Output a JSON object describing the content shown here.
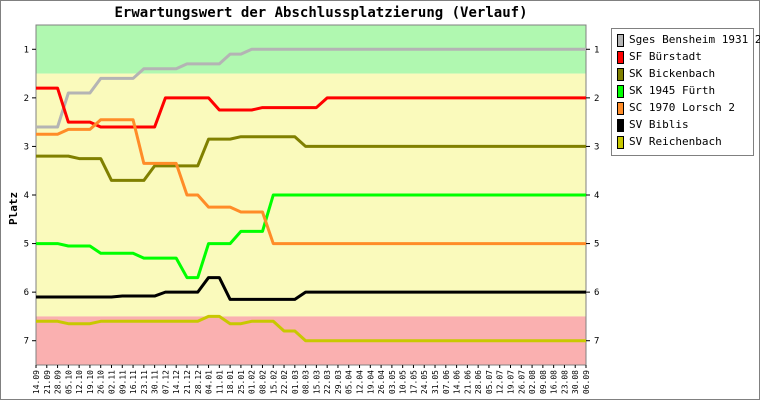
{
  "chart_data": {
    "type": "line",
    "title": "Erwartungswert der Abschlussplatzierung (Verlauf)",
    "ylabel": "Platz",
    "xlabel": "",
    "ylim": [
      0.5,
      7.5
    ],
    "y_ticks": [
      1,
      2,
      3,
      4,
      5,
      6,
      7
    ],
    "grid": false,
    "legend_position": "right",
    "bands": [
      {
        "from": 0.5,
        "to": 1.5,
        "color": "#b0f8b0"
      },
      {
        "from": 1.5,
        "to": 6.5,
        "color": "#fafabc"
      },
      {
        "from": 6.5,
        "to": 7.5,
        "color": "#fab0b0"
      }
    ],
    "categories": [
      "14.09",
      "21.09",
      "28.09",
      "05.10",
      "12.10",
      "19.10",
      "26.10",
      "02.11",
      "09.11",
      "16.11",
      "23.11",
      "30.11",
      "07.12",
      "14.12",
      "21.12",
      "28.12",
      "04.01",
      "11.01",
      "18.01",
      "25.01",
      "01.02",
      "08.02",
      "15.02",
      "22.02",
      "01.03",
      "08.03",
      "15.03",
      "22.03",
      "29.03",
      "05.04",
      "12.04",
      "19.04",
      "26.04",
      "03.05",
      "10.05",
      "17.05",
      "24.05",
      "31.05",
      "07.06",
      "14.06",
      "21.06",
      "28.06",
      "05.07",
      "12.07",
      "19.07",
      "26.07",
      "02.08",
      "09.08",
      "16.08",
      "23.08",
      "30.08",
      "06.09"
    ],
    "series": [
      {
        "name": "Sges Bensheim 1931 2",
        "color": "#b4b4b4",
        "values": [
          2.6,
          2.6,
          2.6,
          1.9,
          1.9,
          1.9,
          1.6,
          1.6,
          1.6,
          1.6,
          1.4,
          1.4,
          1.4,
          1.4,
          1.3,
          1.3,
          1.3,
          1.3,
          1.1,
          1.1,
          1.0,
          1.0,
          1.0,
          1.0,
          1.0,
          1.0,
          1.0,
          1.0,
          1.0,
          1.0,
          1.0,
          1.0,
          1.0,
          1.0,
          1.0,
          1.0,
          1.0,
          1.0,
          1.0,
          1.0,
          1.0,
          1.0,
          1.0,
          1.0,
          1.0,
          1.0,
          1.0,
          1.0,
          1.0,
          1.0,
          1.0,
          1.0
        ]
      },
      {
        "name": "SF Bürstadt",
        "color": "#ff0000",
        "values": [
          1.8,
          1.8,
          1.8,
          2.5,
          2.5,
          2.5,
          2.6,
          2.6,
          2.6,
          2.6,
          2.6,
          2.6,
          2.0,
          2.0,
          2.0,
          2.0,
          2.0,
          2.25,
          2.25,
          2.25,
          2.25,
          2.2,
          2.2,
          2.2,
          2.2,
          2.2,
          2.2,
          2.0,
          2.0,
          2.0,
          2.0,
          2.0,
          2.0,
          2.0,
          2.0,
          2.0,
          2.0,
          2.0,
          2.0,
          2.0,
          2.0,
          2.0,
          2.0,
          2.0,
          2.0,
          2.0,
          2.0,
          2.0,
          2.0,
          2.0,
          2.0,
          2.0
        ]
      },
      {
        "name": "SK Bickenbach",
        "color": "#808000",
        "values": [
          3.2,
          3.2,
          3.2,
          3.2,
          3.25,
          3.25,
          3.25,
          3.7,
          3.7,
          3.7,
          3.7,
          3.4,
          3.4,
          3.4,
          3.4,
          3.4,
          2.85,
          2.85,
          2.85,
          2.8,
          2.8,
          2.8,
          2.8,
          2.8,
          2.8,
          3.0,
          3.0,
          3.0,
          3.0,
          3.0,
          3.0,
          3.0,
          3.0,
          3.0,
          3.0,
          3.0,
          3.0,
          3.0,
          3.0,
          3.0,
          3.0,
          3.0,
          3.0,
          3.0,
          3.0,
          3.0,
          3.0,
          3.0,
          3.0,
          3.0,
          3.0,
          3.0
        ]
      },
      {
        "name": "SK 1945 Fürth",
        "color": "#00ff00",
        "values": [
          5.0,
          5.0,
          5.0,
          5.05,
          5.05,
          5.05,
          5.2,
          5.2,
          5.2,
          5.2,
          5.3,
          5.3,
          5.3,
          5.3,
          5.7,
          5.7,
          5.0,
          5.0,
          5.0,
          4.75,
          4.75,
          4.75,
          4.0,
          4.0,
          4.0,
          4.0,
          4.0,
          4.0,
          4.0,
          4.0,
          4.0,
          4.0,
          4.0,
          4.0,
          4.0,
          4.0,
          4.0,
          4.0,
          4.0,
          4.0,
          4.0,
          4.0,
          4.0,
          4.0,
          4.0,
          4.0,
          4.0,
          4.0,
          4.0,
          4.0,
          4.0,
          4.0
        ]
      },
      {
        "name": "SC 1970 Lorsch 2",
        "color": "#ff8c28",
        "values": [
          2.75,
          2.75,
          2.75,
          2.65,
          2.65,
          2.65,
          2.45,
          2.45,
          2.45,
          2.45,
          3.35,
          3.35,
          3.35,
          3.35,
          4.0,
          4.0,
          4.25,
          4.25,
          4.25,
          4.35,
          4.35,
          4.35,
          5.0,
          5.0,
          5.0,
          5.0,
          5.0,
          5.0,
          5.0,
          5.0,
          5.0,
          5.0,
          5.0,
          5.0,
          5.0,
          5.0,
          5.0,
          5.0,
          5.0,
          5.0,
          5.0,
          5.0,
          5.0,
          5.0,
          5.0,
          5.0,
          5.0,
          5.0,
          5.0,
          5.0,
          5.0,
          5.0
        ]
      },
      {
        "name": "SV Biblis",
        "color": "#000000",
        "values": [
          6.1,
          6.1,
          6.1,
          6.1,
          6.1,
          6.1,
          6.1,
          6.1,
          6.08,
          6.08,
          6.08,
          6.08,
          6.0,
          6.0,
          6.0,
          6.0,
          5.7,
          5.7,
          6.15,
          6.15,
          6.15,
          6.15,
          6.15,
          6.15,
          6.15,
          6.0,
          6.0,
          6.0,
          6.0,
          6.0,
          6.0,
          6.0,
          6.0,
          6.0,
          6.0,
          6.0,
          6.0,
          6.0,
          6.0,
          6.0,
          6.0,
          6.0,
          6.0,
          6.0,
          6.0,
          6.0,
          6.0,
          6.0,
          6.0,
          6.0,
          6.0,
          6.0
        ]
      },
      {
        "name": "SV Reichenbach",
        "color": "#c8c800",
        "values": [
          6.6,
          6.6,
          6.6,
          6.65,
          6.65,
          6.65,
          6.6,
          6.6,
          6.6,
          6.6,
          6.6,
          6.6,
          6.6,
          6.6,
          6.6,
          6.6,
          6.5,
          6.5,
          6.65,
          6.65,
          6.6,
          6.6,
          6.6,
          6.8,
          6.8,
          7.0,
          7.0,
          7.0,
          7.0,
          7.0,
          7.0,
          7.0,
          7.0,
          7.0,
          7.0,
          7.0,
          7.0,
          7.0,
          7.0,
          7.0,
          7.0,
          7.0,
          7.0,
          7.0,
          7.0,
          7.0,
          7.0,
          7.0,
          7.0,
          7.0,
          7.0,
          7.0
        ]
      }
    ]
  }
}
